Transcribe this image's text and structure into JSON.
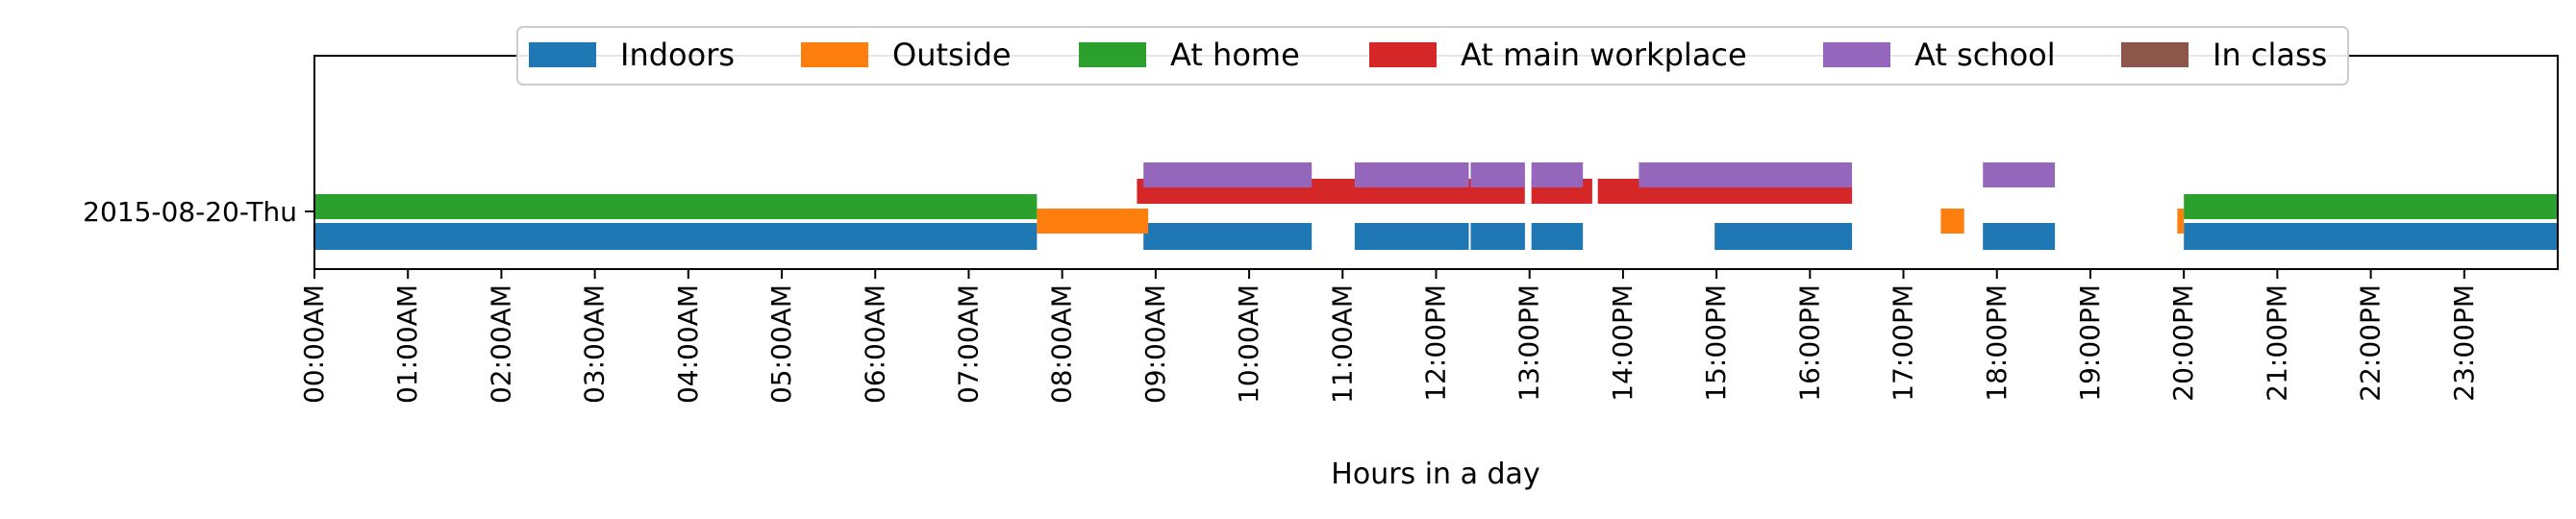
{
  "chart_data": {
    "type": "timeline",
    "title": "",
    "xlabel": "Hours in a day",
    "ylabel": "",
    "xlim_hours": [
      0,
      24
    ],
    "x_tick_labels": [
      "00:00AM",
      "01:00AM",
      "02:00AM",
      "03:00AM",
      "04:00AM",
      "05:00AM",
      "06:00AM",
      "07:00AM",
      "08:00AM",
      "09:00AM",
      "10:00AM",
      "11:00AM",
      "12:00PM",
      "13:00PM",
      "14:00PM",
      "15:00PM",
      "16:00PM",
      "17:00PM",
      "18:00PM",
      "19:00PM",
      "20:00PM",
      "21:00PM",
      "22:00PM",
      "23:00PM"
    ],
    "categories": [
      "2015-08-20-Thu"
    ],
    "grid": false,
    "legend_placement": "top-center",
    "series": [
      {
        "name": "Indoors",
        "color": "#1f77b4",
        "intervals": [
          [
            0.0,
            7.73
          ],
          [
            8.87,
            10.67
          ],
          [
            11.13,
            12.35
          ],
          [
            12.37,
            12.95
          ],
          [
            13.02,
            13.57
          ],
          [
            14.98,
            16.45
          ],
          [
            17.85,
            18.62
          ],
          [
            20.0,
            24.0
          ]
        ]
      },
      {
        "name": "Outside",
        "color": "#ff7f0e",
        "intervals": [
          [
            7.73,
            8.92
          ],
          [
            17.4,
            17.65
          ],
          [
            19.93,
            20.0
          ]
        ]
      },
      {
        "name": "At home",
        "color": "#2ca02c",
        "intervals": [
          [
            0.0,
            7.73
          ],
          [
            20.0,
            24.0
          ]
        ]
      },
      {
        "name": "At main workplace",
        "color": "#d62728",
        "intervals": [
          [
            8.8,
            12.95
          ],
          [
            13.02,
            13.67
          ],
          [
            13.73,
            16.45
          ]
        ]
      },
      {
        "name": "At school",
        "color": "#9467bd",
        "intervals": [
          [
            8.87,
            10.67
          ],
          [
            11.13,
            12.35
          ],
          [
            12.37,
            12.95
          ],
          [
            13.02,
            13.57
          ],
          [
            14.17,
            16.45
          ],
          [
            17.85,
            18.62
          ]
        ]
      },
      {
        "name": "In class",
        "color": "#8c564b",
        "intervals": []
      }
    ]
  }
}
